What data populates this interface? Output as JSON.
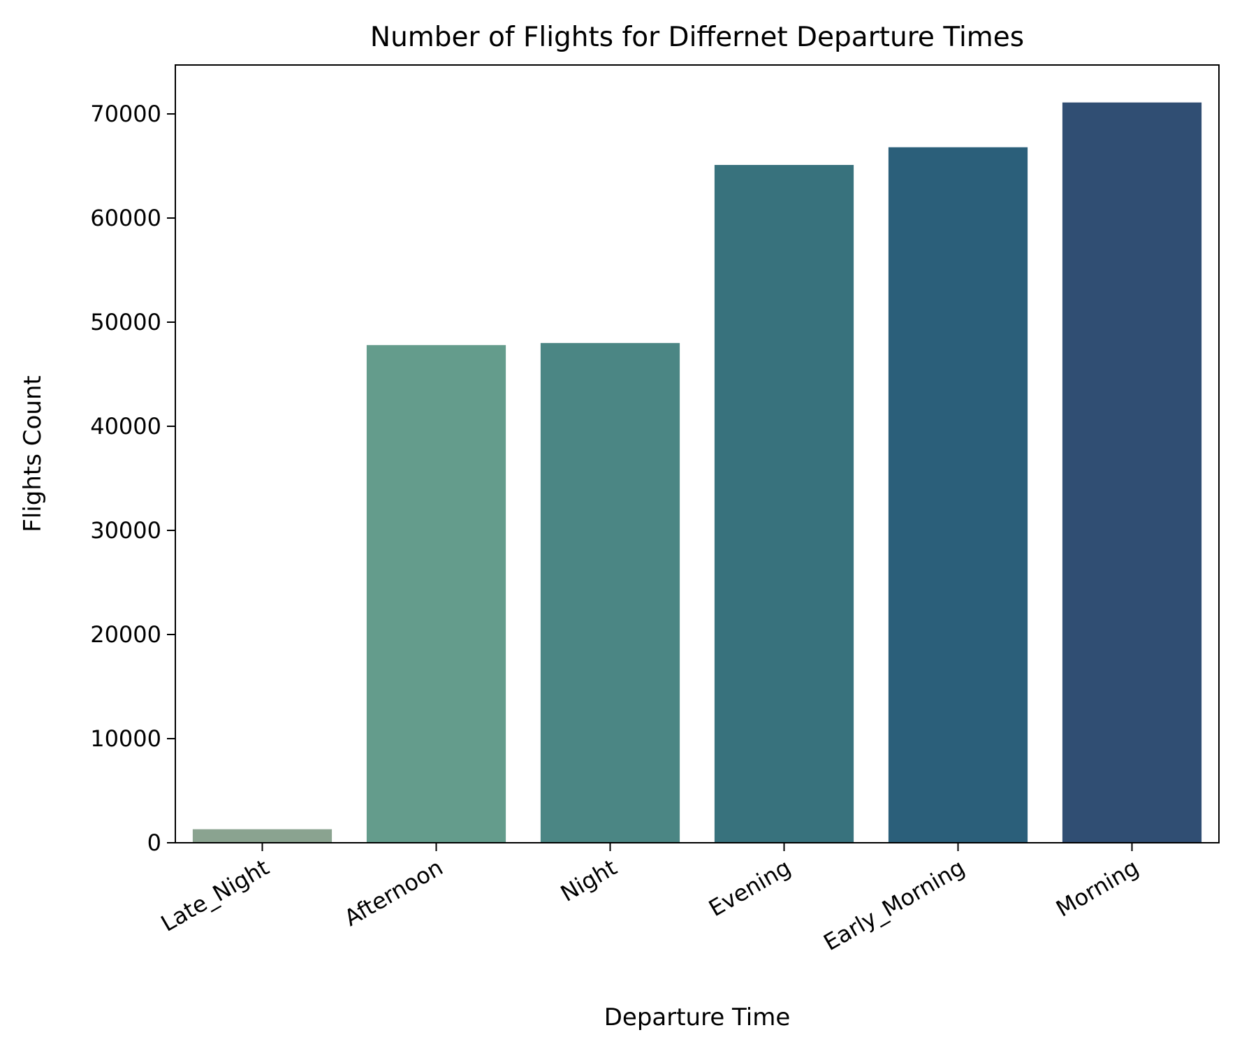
{
  "chart_data": {
    "type": "bar",
    "title": "Number of Flights for Differnet Departure Times",
    "xlabel": "Departure Time",
    "ylabel": "Flights Count",
    "categories": [
      "Late_Night",
      "Afternoon",
      "Night",
      "Evening",
      "Early_Morning",
      "Morning"
    ],
    "values": [
      1300,
      47800,
      48000,
      65100,
      66800,
      71100
    ],
    "colors": [
      "#8aa390",
      "#649c8c",
      "#4b8684",
      "#38727d",
      "#2b5f7a",
      "#304e73"
    ],
    "ylim": [
      0,
      74700
    ],
    "yticks": [
      0,
      10000,
      20000,
      30000,
      40000,
      50000,
      60000,
      70000
    ],
    "ytick_labels": [
      "0",
      "10000",
      "20000",
      "30000",
      "40000",
      "50000",
      "60000",
      "70000"
    ],
    "xtick_rotation": -30,
    "grid": false,
    "legend": false
  }
}
